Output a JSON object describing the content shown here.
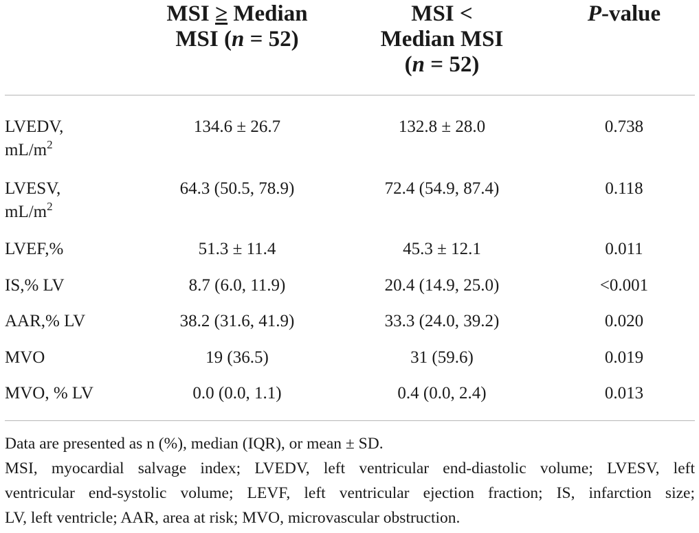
{
  "header": {
    "col1": {
      "line1_prefix": "MSI ",
      "line1_symbol": "≥",
      "line1_suffix": " Median",
      "line2_prefix": "MSI (",
      "line2_var": "n",
      "line2_suffix": " = 52)"
    },
    "col2": {
      "line1": "MSI <",
      "line2": "Median MSI",
      "line3_prefix": "(",
      "line3_var": "n",
      "line3_suffix": " = 52)"
    },
    "col3": {
      "var": "P",
      "suffix": "-value"
    }
  },
  "rows": [
    {
      "label_line1": "LVEDV,",
      "label_line2": "mL/m",
      "label_sup": "2",
      "v1": "134.6 ± 26.7",
      "v2": "132.8 ± 28.0",
      "p": "0.738"
    },
    {
      "label_line1": "LVESV,",
      "label_line2": "mL/m",
      "label_sup": "2",
      "v1": "64.3 (50.5, 78.9)",
      "v2": "72.4 (54.9, 87.4)",
      "p": "0.118"
    },
    {
      "label": "LVEF,%",
      "v1": "51.3 ± 11.4",
      "v2": "45.3 ± 12.1",
      "p": "0.011"
    },
    {
      "label": "IS,% LV",
      "v1": "8.7 (6.0, 11.9)",
      "v2": "20.4 (14.9, 25.0)",
      "p": "<0.001"
    },
    {
      "label": "AAR,% LV",
      "v1": "38.2 (31.6, 41.9)",
      "v2": "33.3 (24.0, 39.2)",
      "p": "0.020"
    },
    {
      "label": "MVO",
      "v1": "19 (36.5)",
      "v2": "31 (59.6)",
      "p": "0.019"
    },
    {
      "label": "MVO, % LV",
      "v1": "0.0 (0.0, 1.1)",
      "v2": "0.4 (0.0, 2.4)",
      "p": "0.013"
    }
  ],
  "footnotes": {
    "line1": "Data are presented as n (%), median (IQR), or mean ± SD.",
    "line2": "MSI, myocardial salvage index; LVEDV, left ventricular end-diastolic volume; LVESV, left",
    "line3": "ventricular end-systolic volume; LEVF, left ventricular ejection fraction; IS, infarction size;",
    "line4": "LV, left ventricle; AAR, area at risk; MVO, microvascular obstruction."
  }
}
